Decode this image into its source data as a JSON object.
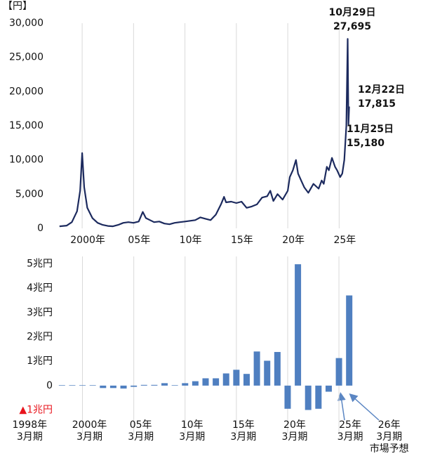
{
  "chart_data": [
    {
      "type": "line",
      "unit_label": "【円】",
      "x": [
        1997.8,
        1998.5,
        1999,
        1999.5,
        1999.8,
        2000.0,
        2000.2,
        2000.5,
        2001,
        2001.5,
        2002,
        2002.5,
        2003,
        2003.5,
        2004,
        2004.5,
        2005,
        2005.5,
        2005.9,
        2006.2,
        2006.6,
        2007,
        2007.5,
        2008,
        2008.5,
        2009,
        2009.5,
        2010,
        2010.5,
        2011,
        2011.5,
        2012,
        2012.5,
        2013,
        2013.5,
        2013.8,
        2014,
        2014.5,
        2015,
        2015.5,
        2016,
        2016.5,
        2017,
        2017.5,
        2018,
        2018.3,
        2018.6,
        2019,
        2019.5,
        2020,
        2020.2,
        2020.5,
        2020.8,
        2021,
        2021.3,
        2021.6,
        2022,
        2022.5,
        2023,
        2023.3,
        2023.5,
        2023.8,
        2024,
        2024.3,
        2024.6,
        2024.8,
        2025.1,
        2025.3,
        2025.5,
        2025.7,
        2025.83,
        2025.9,
        2025.97
      ],
      "values": [
        300,
        400,
        900,
        2500,
        5500,
        11000,
        6000,
        3000,
        1500,
        800,
        500,
        350,
        300,
        500,
        800,
        900,
        800,
        1000,
        2400,
        1500,
        1200,
        900,
        1000,
        700,
        600,
        800,
        900,
        1000,
        1100,
        1200,
        1600,
        1400,
        1200,
        2000,
        3500,
        4600,
        3800,
        3900,
        3700,
        3900,
        3000,
        3200,
        3500,
        4500,
        4700,
        5500,
        4000,
        5000,
        4200,
        5500,
        7500,
        8500,
        10000,
        8000,
        7000,
        6000,
        5200,
        6500,
        5800,
        7000,
        6500,
        9000,
        8500,
        10300,
        9000,
        8500,
        7500,
        8000,
        10000,
        15000,
        27695,
        15180,
        17815
      ],
      "color": "#1c2a5e",
      "xlim": [
        1996.65,
        2027.5
      ],
      "xticks": [
        {
          "value": 2000,
          "label": "2000年"
        },
        {
          "value": 2005,
          "label": "05年"
        },
        {
          "value": 2010,
          "label": "10年"
        },
        {
          "value": 2015,
          "label": "15年"
        },
        {
          "value": 2020,
          "label": "20年"
        },
        {
          "value": 2025,
          "label": "25年"
        }
      ],
      "ylim": [
        0,
        30000
      ],
      "yticks": [
        0,
        {
          "value": 5000,
          "label": "5,000"
        },
        {
          "value": 10000,
          "label": "10,000"
        },
        {
          "value": 15000,
          "label": "15,000"
        },
        {
          "value": 20000,
          "label": "20,000"
        },
        {
          "value": 25000,
          "label": "25,000"
        },
        {
          "value": 30000,
          "label": "30,000"
        }
      ],
      "grid": "x",
      "annotations": [
        {
          "text": "10月29日",
          "value": 27695,
          "value_label": "27,695"
        },
        {
          "text": "12月22日",
          "value": 17815,
          "value_label": "17,815"
        },
        {
          "text": "11月25日",
          "value": 15180,
          "value_label": "15,180"
        }
      ]
    },
    {
      "type": "bar",
      "categories": [
        [
          "1998年",
          "3月期"
        ],
        null,
        [
          "2000年",
          "3月期"
        ],
        null,
        null,
        null,
        null,
        [
          "05年",
          "3月期"
        ],
        null,
        null,
        null,
        null,
        [
          "10年",
          "3月期"
        ],
        null,
        null,
        null,
        null,
        [
          "15年",
          "3月期"
        ],
        null,
        null,
        null,
        null,
        [
          "20年",
          "3月期"
        ],
        null,
        null,
        null,
        null,
        [
          "25年",
          "3月期"
        ],
        [
          "26年",
          "3月期",
          "市場予想"
        ]
      ],
      "values": [
        0.02,
        0.02,
        0.02,
        0.02,
        -0.1,
        -0.1,
        -0.12,
        -0.05,
        0.03,
        0.03,
        0.1,
        0.02,
        0.1,
        0.18,
        0.3,
        0.3,
        0.5,
        0.65,
        0.48,
        1.4,
        1.02,
        1.38,
        -0.95,
        4.98,
        -1.0,
        -0.95,
        -0.25,
        1.13,
        3.7
      ],
      "color": "#4f7fc0",
      "ylim": [
        -1.1,
        5.3
      ],
      "yticks": [
        {
          "value": -1,
          "label": "▲1兆円"
        },
        0,
        {
          "value": 1,
          "label": "1兆円"
        },
        {
          "value": 2,
          "label": "2兆円"
        },
        {
          "value": 3,
          "label": "3兆円"
        },
        {
          "value": 4,
          "label": "4兆円"
        },
        {
          "value": 5,
          "label": "5兆円"
        }
      ],
      "negative_tick_color": "#e8141c",
      "grid": "x"
    }
  ]
}
